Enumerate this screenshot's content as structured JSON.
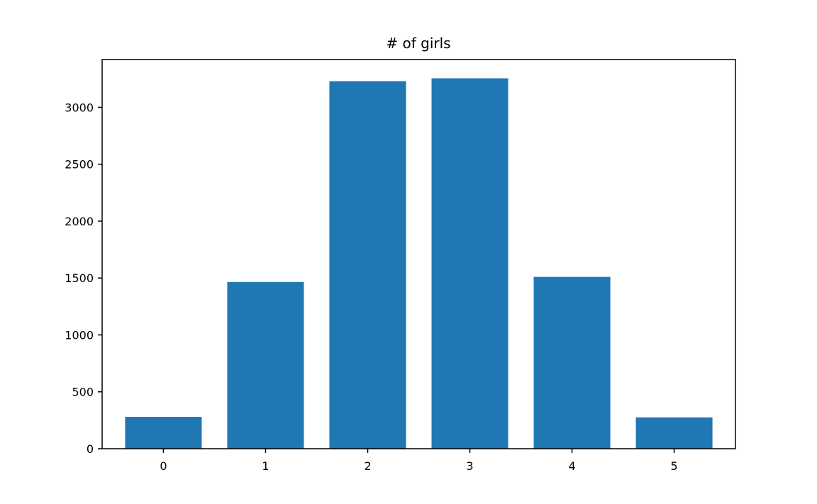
{
  "chart_data": {
    "type": "bar",
    "title": "# of girls",
    "xlabel": "",
    "ylabel": "",
    "categories": [
      "0",
      "1",
      "2",
      "3",
      "4",
      "5"
    ],
    "values": [
      280,
      1465,
      3230,
      3255,
      1510,
      275
    ],
    "bar_color": "#1f77b4",
    "ylim": [
      0,
      3420
    ],
    "yticks": [
      0,
      500,
      1000,
      1500,
      2000,
      2500,
      3000
    ],
    "grid": false
  }
}
